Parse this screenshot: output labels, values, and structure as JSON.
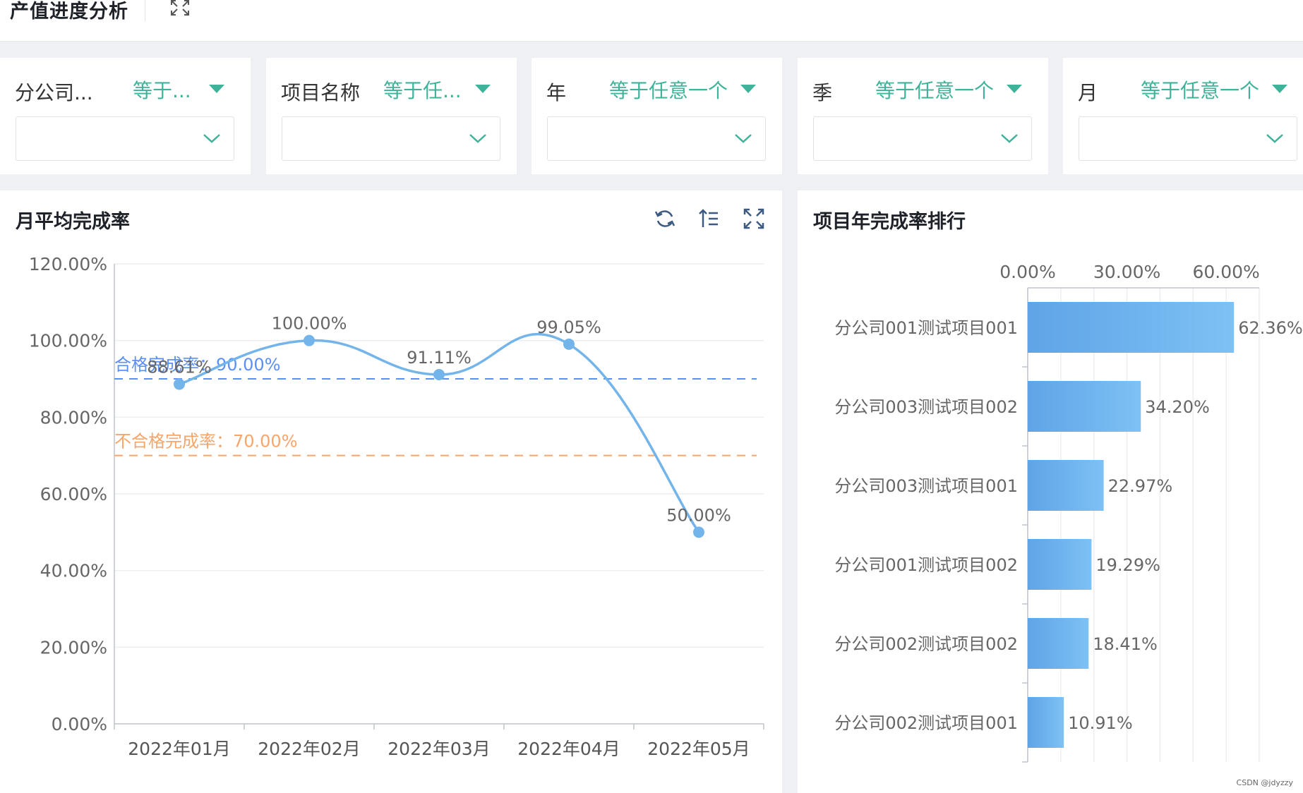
{
  "header": {
    "title": "产值进度分析"
  },
  "filters": [
    {
      "label": "分公司...",
      "operator": "等于..."
    },
    {
      "label": "项目名称",
      "operator": "等于任..."
    },
    {
      "label": "年",
      "operator": "等于任意一个"
    },
    {
      "label": "季",
      "operator": "等于任意一个"
    },
    {
      "label": "月",
      "operator": "等于任意一个"
    }
  ],
  "colors": {
    "accent": "#3fb39a",
    "line": "#73b4ea",
    "qualified": "#5b8ff9",
    "unqualified": "#f6a56b",
    "bar": "#6fb1ec"
  },
  "chart_data": [
    {
      "type": "line",
      "title": "月平均完成率",
      "categories": [
        "2022年01月",
        "2022年02月",
        "2022年03月",
        "2022年04月",
        "2022年05月"
      ],
      "series": [
        {
          "values": [
            88.61,
            100.0,
            91.11,
            99.05,
            50.0
          ],
          "labels": [
            "88.61%",
            "100.00%",
            "91.11%",
            "99.05%",
            "50.00%"
          ]
        }
      ],
      "y_ticks": [
        "0.00%",
        "20.00%",
        "40.00%",
        "60.00%",
        "80.00%",
        "100.00%",
        "120.00%"
      ],
      "ylim": [
        0,
        120
      ],
      "smooth": true,
      "reference_lines": [
        {
          "label": "合格完成率：90.00%",
          "value": 90,
          "color": "#5b8ff9"
        },
        {
          "label": "不合格完成率：70.00%",
          "value": 70,
          "color": "#f6a56b"
        }
      ],
      "grid": true
    },
    {
      "type": "bar",
      "orientation": "horizontal",
      "title": "项目年完成率排行",
      "categories": [
        "分公司001测试项目001",
        "分公司003测试项目002",
        "分公司003测试项目001",
        "分公司001测试项目002",
        "分公司002测试项目002",
        "分公司002测试项目001"
      ],
      "values": [
        62.36,
        34.2,
        22.97,
        19.29,
        18.41,
        10.91
      ],
      "labels": [
        "62.36%",
        "34.20%",
        "22.97%",
        "19.29%",
        "18.41%",
        "10.91%"
      ],
      "x_ticks": [
        "0.00%",
        "30.00%",
        "60.00%"
      ],
      "xlim": [
        0,
        70
      ],
      "x_axis_position": "top",
      "grid": true
    }
  ],
  "watermark": "CSDN @jdyzzy"
}
